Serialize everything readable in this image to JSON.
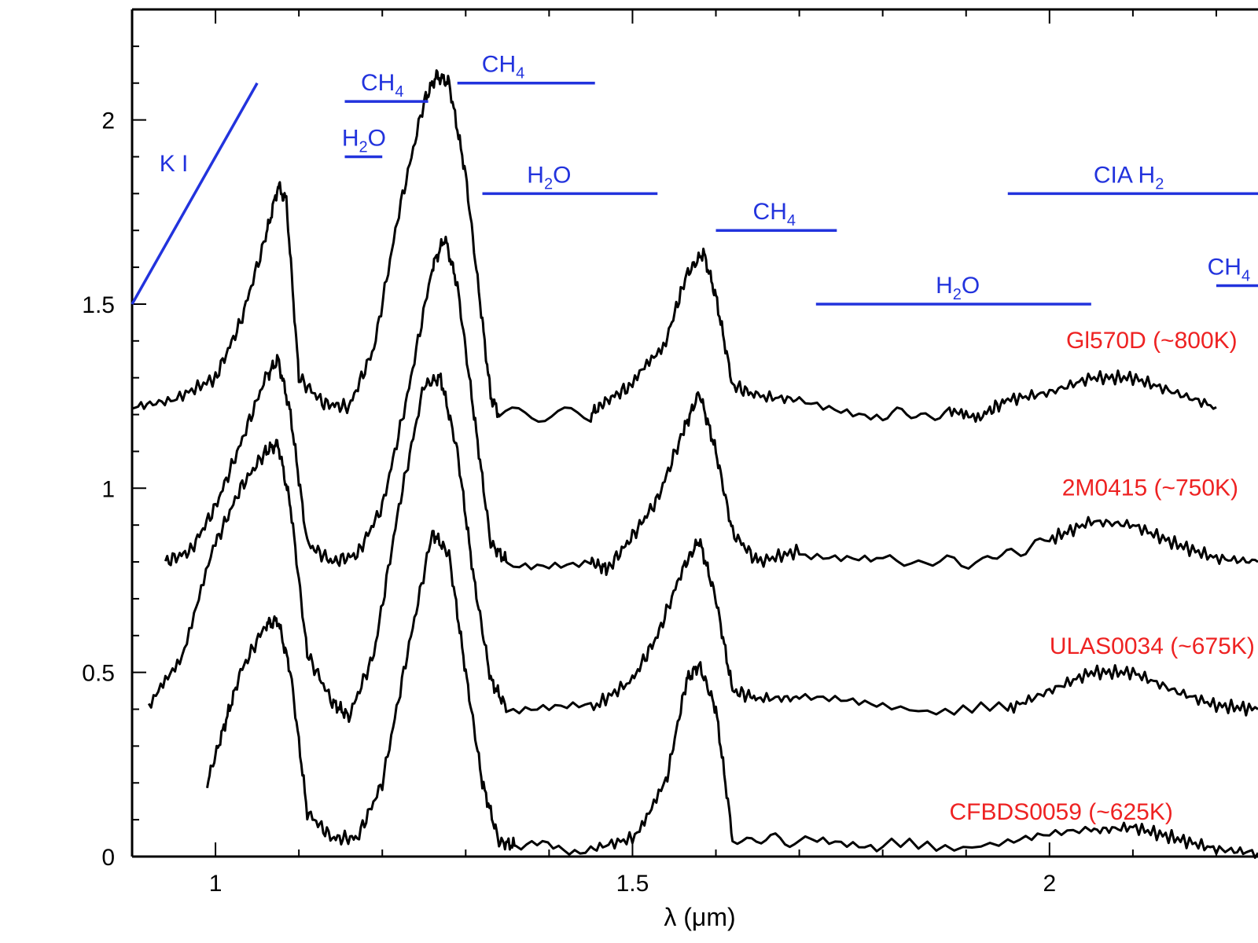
{
  "chart_data": {
    "type": "line",
    "xlabel": "λ (μm)",
    "ylabel": "",
    "xlim": [
      0.9,
      2.25
    ],
    "ylim": [
      0,
      2.3
    ],
    "x_ticks": [
      {
        "value": 1,
        "label": "1"
      },
      {
        "value": 1.5,
        "label": "1.5"
      },
      {
        "value": 2,
        "label": "2"
      }
    ],
    "y_ticks": [
      {
        "value": 0,
        "label": "0"
      },
      {
        "value": 0.5,
        "label": "0.5"
      },
      {
        "value": 1,
        "label": "1"
      },
      {
        "value": 1.5,
        "label": "1.5"
      },
      {
        "value": 2,
        "label": "2"
      }
    ],
    "colors": {
      "spectra": "#000000",
      "bands": "#2233dd",
      "names": "#ee2222"
    },
    "series": [
      {
        "name": "Gl570D (~800K)",
        "x": [
          0.9,
          0.95,
          1.0,
          1.03,
          1.06,
          1.075,
          1.085,
          1.1,
          1.13,
          1.16,
          1.19,
          1.22,
          1.25,
          1.265,
          1.28,
          1.3,
          1.32,
          1.33,
          1.34,
          1.45,
          1.47,
          1.5,
          1.54,
          1.565,
          1.585,
          1.6,
          1.62,
          1.65,
          1.7,
          1.8,
          1.88,
          1.92,
          1.95,
          2.0,
          2.05,
          2.1,
          2.15,
          2.2
        ],
        "values": [
          1.22,
          1.24,
          1.3,
          1.45,
          1.68,
          1.82,
          1.78,
          1.3,
          1.23,
          1.22,
          1.38,
          1.75,
          2.05,
          2.12,
          2.1,
          1.85,
          1.45,
          1.25,
          1.2,
          1.2,
          1.24,
          1.28,
          1.4,
          1.58,
          1.64,
          1.52,
          1.28,
          1.25,
          1.24,
          1.2,
          1.2,
          1.2,
          1.24,
          1.26,
          1.3,
          1.3,
          1.26,
          1.22
        ]
      },
      {
        "name": "2M0415 (~750K)",
        "x": [
          0.94,
          0.97,
          1.0,
          1.03,
          1.06,
          1.075,
          1.09,
          1.11,
          1.14,
          1.17,
          1.2,
          1.23,
          1.26,
          1.275,
          1.29,
          1.31,
          1.33,
          1.35,
          1.45,
          1.47,
          1.5,
          1.53,
          1.56,
          1.58,
          1.6,
          1.62,
          1.65,
          1.7,
          1.8,
          1.92,
          2.0,
          2.05,
          2.1,
          2.15,
          2.2,
          2.25
        ],
        "values": [
          0.8,
          0.83,
          0.95,
          1.12,
          1.3,
          1.35,
          1.2,
          0.85,
          0.8,
          0.82,
          0.95,
          1.25,
          1.6,
          1.68,
          1.55,
          1.2,
          0.85,
          0.8,
          0.8,
          0.78,
          0.87,
          0.97,
          1.15,
          1.26,
          1.1,
          0.88,
          0.8,
          0.83,
          0.8,
          0.8,
          0.86,
          0.91,
          0.9,
          0.85,
          0.81,
          0.8
        ]
      },
      {
        "name": "ULAS0034 (~675K)",
        "x": [
          0.92,
          0.96,
          1.0,
          1.03,
          1.06,
          1.075,
          1.09,
          1.11,
          1.14,
          1.16,
          1.19,
          1.22,
          1.25,
          1.27,
          1.29,
          1.31,
          1.33,
          1.35,
          1.45,
          1.5,
          1.53,
          1.56,
          1.58,
          1.6,
          1.62,
          1.65,
          1.7,
          1.8,
          1.95,
          2.0,
          2.05,
          2.1,
          2.15,
          2.2,
          2.25
        ],
        "values": [
          0.4,
          0.55,
          0.85,
          1.0,
          1.1,
          1.12,
          0.95,
          0.55,
          0.42,
          0.38,
          0.55,
          0.95,
          1.28,
          1.3,
          1.1,
          0.75,
          0.48,
          0.4,
          0.4,
          0.48,
          0.6,
          0.78,
          0.86,
          0.7,
          0.45,
          0.43,
          0.43,
          0.4,
          0.4,
          0.45,
          0.5,
          0.5,
          0.45,
          0.41,
          0.4
        ]
      },
      {
        "name": "CFBDS0059 (~625K)",
        "x": [
          0.99,
          1.01,
          1.03,
          1.06,
          1.075,
          1.09,
          1.11,
          1.14,
          1.17,
          1.2,
          1.23,
          1.26,
          1.28,
          1.3,
          1.32,
          1.34,
          1.36,
          1.45,
          1.5,
          1.54,
          1.565,
          1.58,
          1.6,
          1.62,
          1.7,
          1.8,
          1.95,
          2.05,
          2.1,
          2.15,
          2.2,
          2.25
        ],
        "values": [
          0.2,
          0.35,
          0.5,
          0.63,
          0.64,
          0.5,
          0.12,
          0.05,
          0.05,
          0.2,
          0.55,
          0.88,
          0.82,
          0.5,
          0.2,
          0.04,
          0.03,
          0.02,
          0.05,
          0.2,
          0.48,
          0.52,
          0.4,
          0.05,
          0.04,
          0.03,
          0.03,
          0.07,
          0.08,
          0.05,
          0.02,
          0.01
        ]
      }
    ],
    "band_annotations": [
      {
        "species": "K I",
        "type": "slanted",
        "x": [
          0.9,
          1.05
        ],
        "y": [
          1.5,
          2.1
        ],
        "label_x": 0.95,
        "label_y": 1.86
      },
      {
        "species": "CH",
        "sub": "4",
        "x": [
          1.155,
          1.255
        ],
        "y": 2.05,
        "label_x": 1.2,
        "label_y": 2.08
      },
      {
        "species": "H",
        "sub": "2",
        "tail": "O",
        "x": [
          1.155,
          1.2
        ],
        "y": 1.9,
        "label_x": 1.178,
        "label_y": 1.93
      },
      {
        "species": "CH",
        "sub": "4",
        "x": [
          1.29,
          1.455
        ],
        "y": 2.1,
        "label_x": 1.345,
        "label_y": 2.13
      },
      {
        "species": "H",
        "sub": "2",
        "tail": "O",
        "x": [
          1.32,
          1.53
        ],
        "y": 1.8,
        "label_x": 1.4,
        "label_y": 1.83
      },
      {
        "species": "CH",
        "sub": "4",
        "x": [
          1.6,
          1.745
        ],
        "y": 1.7,
        "label_x": 1.67,
        "label_y": 1.73
      },
      {
        "species": "H",
        "sub": "2",
        "tail": "O",
        "x": [
          1.72,
          2.05
        ],
        "y": 1.5,
        "label_x": 1.89,
        "label_y": 1.53
      },
      {
        "species": "CIA H",
        "sub": "2",
        "x": [
          1.95,
          2.25
        ],
        "y": 1.8,
        "label_x": 2.095,
        "label_y": 1.83
      },
      {
        "species": "CH",
        "sub": "4",
        "x": [
          2.2,
          2.25
        ],
        "y": 1.55,
        "label_x": 2.215,
        "label_y": 1.58
      }
    ],
    "series_label_positions": [
      {
        "x": 2.02,
        "y": 1.38
      },
      {
        "x": 2.015,
        "y": 0.98
      },
      {
        "x": 2.0,
        "y": 0.55
      },
      {
        "x": 1.88,
        "y": 0.1
      }
    ]
  }
}
